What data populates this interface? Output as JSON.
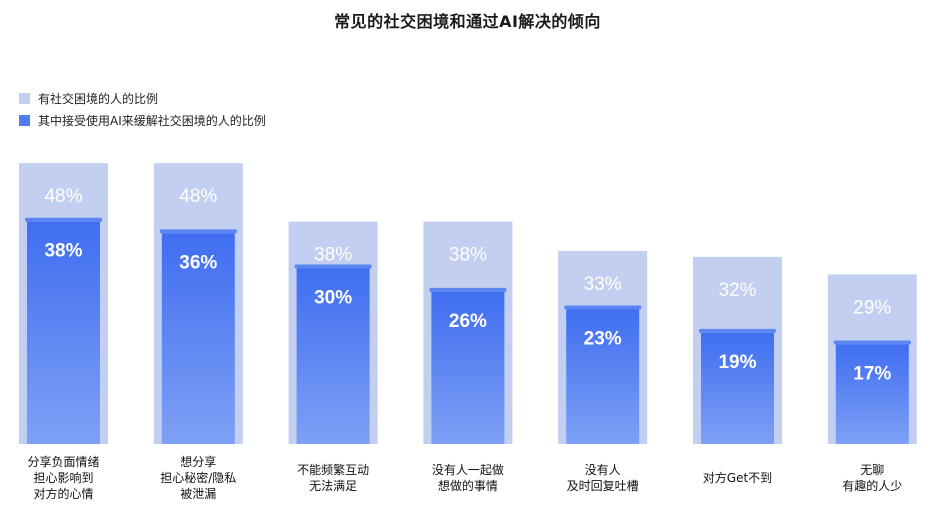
{
  "chart_data": {
    "type": "bar",
    "title": "常见的社交困境和通过AI解决的倾向",
    "legend_position": "top-left",
    "grid": false,
    "ylim": [
      0,
      50
    ],
    "categories": [
      "分享负面情绪\n担心影响到\n对方的心情",
      "想分享\n担心秘密/隐私\n被泄漏",
      "不能频繁互动\n无法满足",
      "没有人一起做\n想做的事情",
      "没有人\n及时回复吐槽",
      "对方Get不到",
      "无聊\n有趣的人少"
    ],
    "series": [
      {
        "name": "有社交困境的人的比例",
        "color": "#c3cff0",
        "values": [
          48,
          48,
          38,
          38,
          33,
          32,
          29
        ],
        "labels": [
          "48%",
          "48%",
          "38%",
          "38%",
          "33%",
          "32%",
          "29%"
        ]
      },
      {
        "name": "其中接受使用AI来缓解社交困境的人的比例",
        "color": "#4f7cf0",
        "values": [
          38,
          36,
          30,
          26,
          23,
          19,
          17
        ],
        "labels": [
          "38%",
          "36%",
          "30%",
          "26%",
          "23%",
          "19%",
          "17%"
        ]
      }
    ]
  }
}
